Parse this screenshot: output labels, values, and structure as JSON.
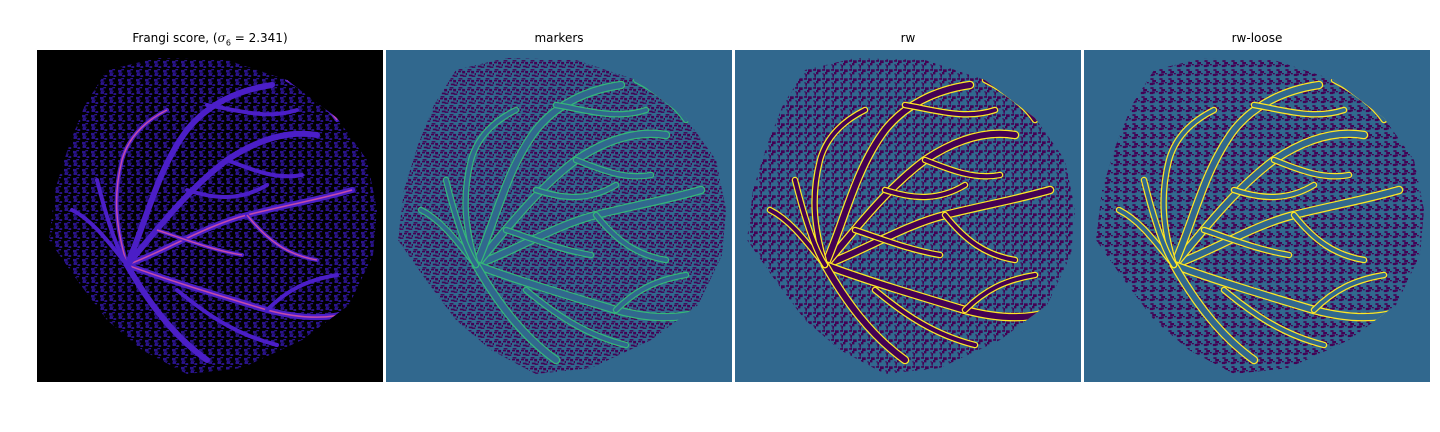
{
  "figure": {
    "panels": [
      {
        "id": "frangi",
        "title_prefix": "Frangi score, (",
        "sigma_symbol": "σ",
        "sigma_sub": "6",
        "title_suffix": " = 2.341)",
        "colormap": "plasma-like",
        "background": "#000000",
        "texture": "#2a138c",
        "vessel_color": "#4b1ec7",
        "vessel_highlight": "#c44aa8"
      },
      {
        "id": "markers",
        "title": "markers",
        "colormap": "viridis",
        "background": "#31688e",
        "texture": "#440154",
        "vessel_color": "#31688e",
        "vessel_edge": "#35b779"
      },
      {
        "id": "rw",
        "title": "rw",
        "colormap": "viridis",
        "background": "#31688e",
        "texture": "#440154",
        "vessel_color": "#440154",
        "vessel_edge": "#fde725"
      },
      {
        "id": "rw-loose",
        "title": "rw-loose",
        "colormap": "viridis",
        "background": "#31688e",
        "texture": "#440154",
        "vessel_color": "#31688e",
        "vessel_edge": "#fde725"
      }
    ]
  }
}
